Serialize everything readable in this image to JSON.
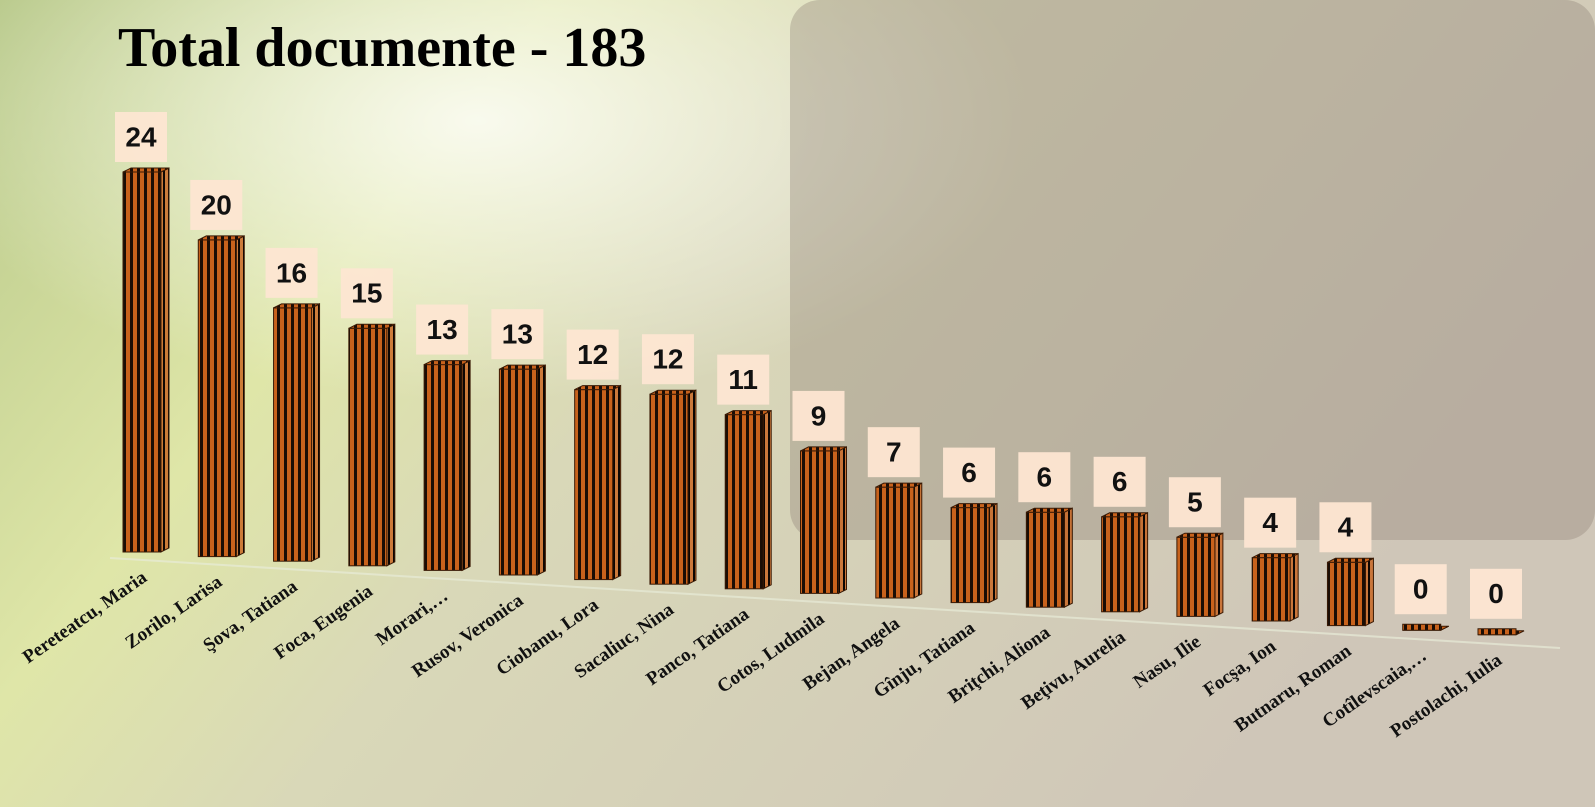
{
  "chart_data": {
    "type": "bar",
    "title": "Total documente - 183",
    "categories": [
      "Pereteatcu, Maria",
      "Zorilo, Larisa",
      "Şova, Tatiana",
      "Foca, Eugenia",
      "Morari,…",
      "Rusov, Veronica",
      "Ciobanu, Lora",
      "Sacaliuc, Nina",
      "Panco, Tatiana",
      "Cotos, Ludmila",
      "Bejan, Angela",
      "Gînju, Tatiana",
      "Briţchi, Aliona",
      "Beţivu, Aurelia",
      "Nasu, Ilie",
      "Focşa, Ion",
      "Butnaru, Roman",
      "Cotîlevscaia,…",
      "Postolachi, Iulia"
    ],
    "values": [
      24,
      20,
      16,
      15,
      13,
      13,
      12,
      12,
      11,
      9,
      7,
      6,
      6,
      6,
      5,
      4,
      4,
      0,
      0
    ],
    "color": "#c8621c"
  }
}
